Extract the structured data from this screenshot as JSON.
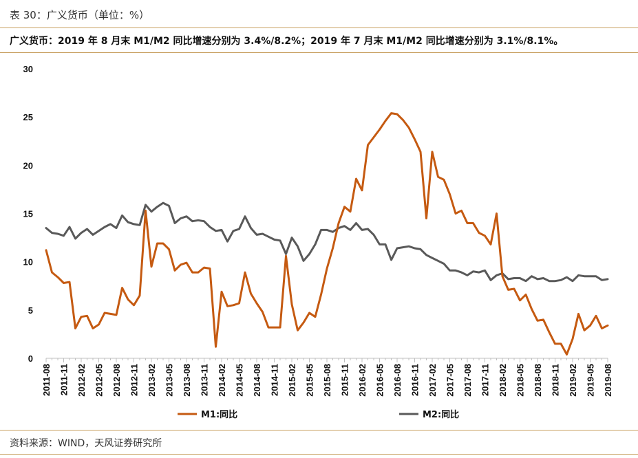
{
  "header": {
    "title": "表 30：广义货币（单位：%）",
    "summary": "广义货币：2019 年 8 月末 M1/M2 同比增速分别为 3.4%/8.2%；2019 年 7 月末 M1/M2 同比增速分别为 3.1%/8.1%。"
  },
  "footer": {
    "source": "资料来源：WIND，天风证券研究所"
  },
  "colors": {
    "accent_rule": "#c8a060",
    "m1": "#c55a11",
    "m2": "#595959"
  },
  "chart_data": {
    "type": "line",
    "title": "",
    "xlabel": "",
    "ylabel": "",
    "ylim": [
      0,
      30
    ],
    "yticks": [
      0,
      5,
      10,
      15,
      20,
      25,
      30
    ],
    "grid": false,
    "legend": "bottom",
    "x": [
      "2011-08",
      "2011-09",
      "2011-10",
      "2011-11",
      "2011-12",
      "2012-01",
      "2012-02",
      "2012-03",
      "2012-04",
      "2012-05",
      "2012-06",
      "2012-07",
      "2012-08",
      "2012-09",
      "2012-10",
      "2012-11",
      "2012-12",
      "2013-01",
      "2013-02",
      "2013-03",
      "2013-04",
      "2013-05",
      "2013-06",
      "2013-07",
      "2013-08",
      "2013-09",
      "2013-10",
      "2013-11",
      "2013-12",
      "2014-01",
      "2014-02",
      "2014-03",
      "2014-04",
      "2014-05",
      "2014-06",
      "2014-07",
      "2014-08",
      "2014-09",
      "2014-10",
      "2014-11",
      "2014-12",
      "2015-01",
      "2015-02",
      "2015-03",
      "2015-04",
      "2015-05",
      "2015-06",
      "2015-07",
      "2015-08",
      "2015-09",
      "2015-10",
      "2015-11",
      "2015-12",
      "2016-01",
      "2016-02",
      "2016-03",
      "2016-04",
      "2016-05",
      "2016-06",
      "2016-07",
      "2016-08",
      "2016-09",
      "2016-10",
      "2016-11",
      "2016-12",
      "2017-01",
      "2017-02",
      "2017-03",
      "2017-04",
      "2017-05",
      "2017-06",
      "2017-07",
      "2017-08",
      "2017-09",
      "2017-10",
      "2017-11",
      "2017-12",
      "2018-01",
      "2018-02",
      "2018-03",
      "2018-04",
      "2018-05",
      "2018-06",
      "2018-07",
      "2018-08",
      "2018-09",
      "2018-10",
      "2018-11",
      "2018-12",
      "2019-01",
      "2019-02",
      "2019-03",
      "2019-04",
      "2019-05",
      "2019-06",
      "2019-07",
      "2019-08"
    ],
    "x_tick_labels": [
      "2011-08",
      "2011-11",
      "2012-02",
      "2012-05",
      "2012-08",
      "2012-11",
      "2013-02",
      "2013-05",
      "2013-08",
      "2013-11",
      "2014-02",
      "2014-05",
      "2014-08",
      "2014-11",
      "2015-02",
      "2015-05",
      "2015-08",
      "2015-11",
      "2016-02",
      "2016-05",
      "2016-08",
      "2016-11",
      "2017-02",
      "2017-05",
      "2017-08",
      "2017-11",
      "2018-02",
      "2018-05",
      "2018-08",
      "2018-11",
      "2019-02",
      "2019-05",
      "2019-08"
    ],
    "series": [
      {
        "name": "M1:同比",
        "color": "#c55a11",
        "values": [
          11.2,
          8.9,
          8.4,
          7.8,
          7.9,
          3.1,
          4.3,
          4.4,
          3.1,
          3.5,
          4.7,
          4.6,
          4.5,
          7.3,
          6.1,
          5.5,
          6.5,
          15.3,
          9.5,
          11.9,
          11.9,
          11.3,
          9.1,
          9.7,
          9.9,
          8.9,
          8.9,
          9.4,
          9.3,
          1.2,
          6.9,
          5.4,
          5.5,
          5.7,
          8.9,
          6.7,
          5.7,
          4.8,
          3.2,
          3.2,
          3.2,
          10.6,
          5.6,
          2.9,
          3.7,
          4.7,
          4.3,
          6.6,
          9.3,
          11.4,
          14.0,
          15.7,
          15.2,
          18.6,
          17.4,
          22.1,
          22.9,
          23.7,
          24.6,
          25.4,
          25.3,
          24.7,
          23.9,
          22.7,
          21.4,
          14.5,
          21.4,
          18.8,
          18.5,
          17.0,
          15.0,
          15.3,
          14.0,
          14.0,
          13.0,
          12.7,
          11.8,
          15.0,
          8.5,
          7.1,
          7.2,
          6.0,
          6.6,
          5.1,
          3.9,
          4.0,
          2.7,
          1.5,
          1.5,
          0.4,
          2.0,
          4.6,
          2.9,
          3.4,
          4.4,
          3.1,
          3.4
        ]
      },
      {
        "name": "M2:同比",
        "color": "#595959",
        "values": [
          13.5,
          13.0,
          12.9,
          12.7,
          13.6,
          12.4,
          13.0,
          13.4,
          12.8,
          13.2,
          13.6,
          13.9,
          13.5,
          14.8,
          14.1,
          13.9,
          13.8,
          15.9,
          15.2,
          15.7,
          16.1,
          15.8,
          14.0,
          14.5,
          14.7,
          14.2,
          14.3,
          14.2,
          13.6,
          13.2,
          13.3,
          12.1,
          13.2,
          13.4,
          14.7,
          13.5,
          12.8,
          12.9,
          12.6,
          12.3,
          12.2,
          10.8,
          12.5,
          11.6,
          10.1,
          10.8,
          11.8,
          13.3,
          13.3,
          13.1,
          13.5,
          13.7,
          13.3,
          14.0,
          13.3,
          13.4,
          12.8,
          11.8,
          11.8,
          10.2,
          11.4,
          11.5,
          11.6,
          11.4,
          11.3,
          10.7,
          10.4,
          10.1,
          9.8,
          9.1,
          9.1,
          8.9,
          8.6,
          9.0,
          8.9,
          9.1,
          8.1,
          8.6,
          8.8,
          8.2,
          8.3,
          8.3,
          8.0,
          8.5,
          8.2,
          8.3,
          8.0,
          8.0,
          8.1,
          8.4,
          8.0,
          8.6,
          8.5,
          8.5,
          8.5,
          8.1,
          8.2
        ]
      }
    ]
  }
}
